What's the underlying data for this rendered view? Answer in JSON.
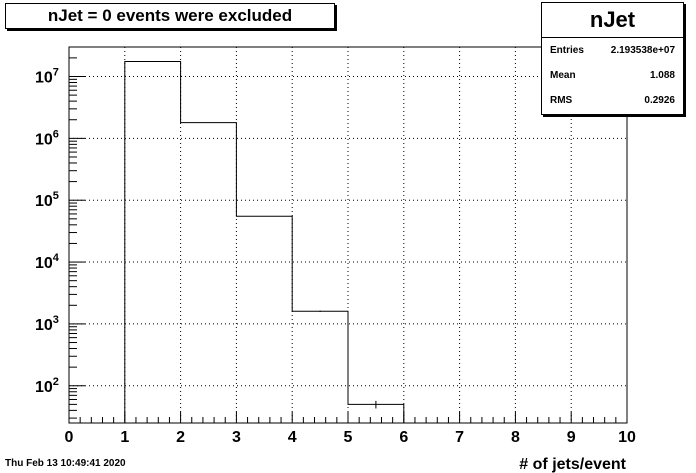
{
  "title": "nJet = 0 events were excluded",
  "stats": {
    "name": "nJet",
    "rows": [
      {
        "label": "Entries",
        "value": "2.193538e+07"
      },
      {
        "label": "Mean",
        "value": "1.088"
      },
      {
        "label": "RMS",
        "value": "0.2926"
      }
    ]
  },
  "footer": "Thu Feb 13 10:49:41 2020",
  "chart_data": {
    "type": "bar",
    "xlabel": "# of jets/event",
    "ylabel": "",
    "xlim": [
      0,
      10
    ],
    "ylim": [
      25,
      30000000
    ],
    "yscale": "log",
    "grid": true,
    "x_ticks": [
      0,
      1,
      2,
      3,
      4,
      5,
      6,
      7,
      8,
      9,
      10
    ],
    "y_ticks": [
      {
        "value": 100,
        "base": "10",
        "exp": "2"
      },
      {
        "value": 1000,
        "base": "10",
        "exp": "3"
      },
      {
        "value": 10000,
        "base": "10",
        "exp": "4"
      },
      {
        "value": 100000,
        "base": "10",
        "exp": "5"
      },
      {
        "value": 1000000,
        "base": "10",
        "exp": "6"
      },
      {
        "value": 10000000,
        "base": "10",
        "exp": "7"
      }
    ],
    "bins": [
      {
        "low": 1,
        "high": 2,
        "value": 17500000
      },
      {
        "low": 2,
        "high": 3,
        "value": 1800000
      },
      {
        "low": 3,
        "high": 4,
        "value": 55000
      },
      {
        "low": 4,
        "high": 5,
        "value": 1600
      },
      {
        "low": 5,
        "high": 6,
        "value": 50
      }
    ]
  }
}
